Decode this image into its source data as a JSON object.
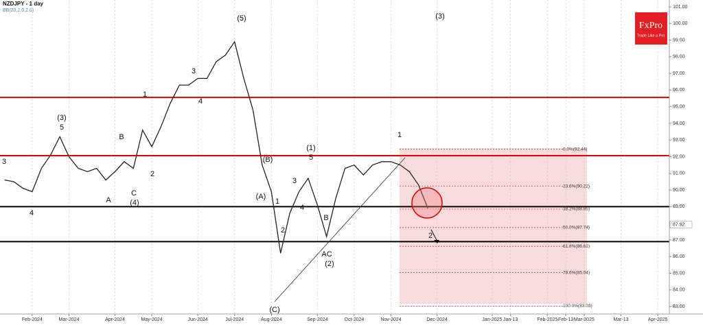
{
  "chart_data": {
    "type": "line",
    "title": "NZDJPY - 1 day",
    "subtitle": "BB(20,2.0,2.0)",
    "brand": "FxPro",
    "slogan": "Trade Like a Pro",
    "categories": [
      null,
      null,
      null,
      "Feb-2024",
      null,
      null,
      null,
      "Mar-2024",
      null,
      null,
      null,
      null,
      "Apr-2024",
      null,
      null,
      null,
      "May-2024",
      null,
      null,
      null,
      null,
      "Jun-2024",
      null,
      null,
      null,
      "Jul-2024",
      null,
      null,
      null,
      "Aug-2024",
      null,
      null,
      null,
      null,
      "Sep-2024",
      null,
      null,
      null,
      "Oct-2024",
      null,
      null,
      null,
      "Nov-2024",
      null,
      null,
      null,
      null,
      "Dec-2024",
      null,
      null,
      null,
      null,
      null,
      "Jan-2025",
      null,
      "Jan-13",
      null,
      null,
      null,
      "Feb-2025",
      null,
      "Feb-13",
      null,
      "Mar-2025",
      null,
      null,
      null,
      "Mar-13",
      null,
      null,
      null,
      "Apr-2025",
      null
    ],
    "series": [
      {
        "name": "NZDJPY",
        "color": "#222222",
        "values": [
          90.6,
          90.5,
          90.1,
          89.9,
          91.3,
          92.1,
          93.2,
          92.0,
          91.3,
          91.1,
          91.3,
          90.6,
          91.1,
          91.7,
          91.3,
          93.6,
          92.6,
          93.8,
          95.2,
          96.3,
          96.3,
          96.7,
          96.7,
          97.7,
          98.1,
          98.9,
          96.7,
          94.8,
          91.5,
          89.9,
          86.2,
          88.6,
          89.9,
          90.7,
          89.1,
          87.2,
          89.5,
          91.3,
          91.5,
          90.9,
          91.5,
          91.7,
          91.7,
          91.5,
          91.1,
          90.3,
          88.9,
          null,
          null,
          null,
          null,
          null,
          null,
          null,
          null,
          null,
          null,
          null,
          null,
          null,
          null,
          null,
          null,
          null,
          null,
          null,
          null,
          null,
          null,
          null,
          null,
          null,
          null
        ]
      }
    ],
    "ylim": [
      82.55,
      101.41
    ],
    "yticks": [
      {
        "value": 83,
        "label": "83.00"
      },
      {
        "value": 84,
        "label": "84.00"
      },
      {
        "value": 85,
        "label": "85.00"
      },
      {
        "value": 86,
        "label": "86.00"
      },
      {
        "value": 87,
        "label": "87.00"
      },
      {
        "value": 88,
        "label": "88.00"
      },
      {
        "value": 89,
        "label": "89.00"
      },
      {
        "value": 90,
        "label": "90.00"
      },
      {
        "value": 91,
        "label": "91.00"
      },
      {
        "value": 92,
        "label": "92.00"
      },
      {
        "value": 93,
        "label": "93.00"
      },
      {
        "value": 94,
        "label": "94.00"
      },
      {
        "value": 95,
        "label": "95.00"
      },
      {
        "value": 96,
        "label": "96.00"
      },
      {
        "value": 97,
        "label": "97.00"
      },
      {
        "value": 98,
        "label": "98.00"
      },
      {
        "value": 99,
        "label": "99.00"
      },
      {
        "value": 100,
        "label": "100.00"
      },
      {
        "value": 101,
        "label": "101.00"
      }
    ],
    "current_price": {
      "value": 87.92,
      "label": "87.92"
    },
    "levels": [
      {
        "value": 95.56,
        "color": "#e00000"
      },
      {
        "value": 92.06,
        "color": "#e00000"
      },
      {
        "value": 89.0,
        "color": "#000000"
      },
      {
        "value": 86.9,
        "color": "#000000"
      }
    ],
    "fib_levels": [
      {
        "value": 92.44,
        "label": "0.0%(92.44)"
      },
      {
        "value": 90.22,
        "label": "23.6%(90.22)"
      },
      {
        "value": 88.85,
        "label": "38.2%(88.85)"
      },
      {
        "value": 87.74,
        "label": "50.0%(87.74)"
      },
      {
        "value": 86.62,
        "label": "61.8%(86.62)"
      },
      {
        "value": 85.04,
        "label": "78.6%(85.04)"
      },
      {
        "value": 83.03,
        "label": "100.0%(83.03)"
      }
    ],
    "wave_labels": [
      "3",
      "4",
      "(3)",
      "5",
      "B",
      "A",
      "C",
      "(4)",
      "1",
      "2",
      "3",
      "4",
      "(5)",
      "(B)",
      "(A)",
      "1",
      "2",
      "3",
      "4",
      "(1)",
      "5",
      "B",
      "AC",
      "(2)",
      "(C)",
      "1",
      "2",
      "(3)"
    ],
    "grid": true
  }
}
